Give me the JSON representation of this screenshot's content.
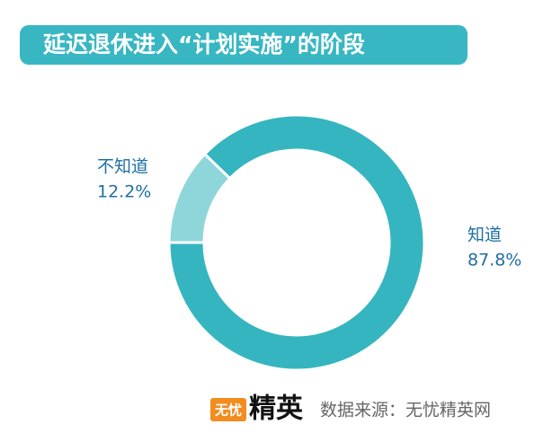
{
  "chart_data": {
    "type": "pie",
    "donut": true,
    "title": "延迟退休进入“计划实施”的阶段",
    "categories": [
      "不知道",
      "知道"
    ],
    "values": [
      12.2,
      87.8
    ],
    "value_labels": [
      "12.2%",
      "87.8%"
    ],
    "colors": [
      "#8fd6da",
      "#35b5c0"
    ]
  },
  "footer": {
    "logo_left": "无忧",
    "logo_right": "精英",
    "source": "数据来源：无忧精英网"
  }
}
